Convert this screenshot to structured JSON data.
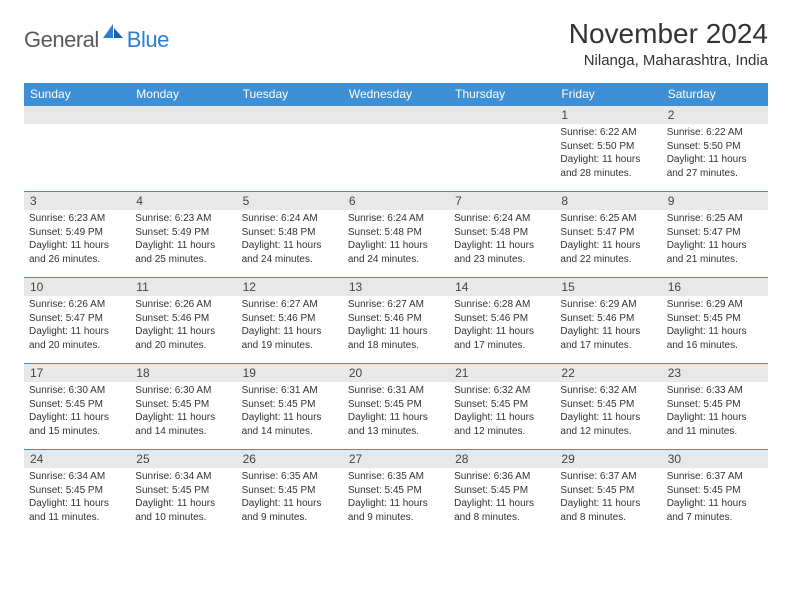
{
  "logo": {
    "word1": "General",
    "word2": "Blue"
  },
  "title": "November 2024",
  "location": "Nilanga, Maharashtra, India",
  "colors": {
    "header_bg": "#3f8fd4",
    "header_text": "#ffffff",
    "daynum_bg": "#e8e8e8",
    "border": "#3f8fd4",
    "body_text": "#333333",
    "logo_gray": "#5a5a5a",
    "logo_blue": "#2b7fd1",
    "page_bg": "#ffffff"
  },
  "typography": {
    "title_fontsize": 28,
    "location_fontsize": 15,
    "dayheader_fontsize": 12,
    "daynum_fontsize": 12,
    "daytext_fontsize": 10
  },
  "day_headers": [
    "Sunday",
    "Monday",
    "Tuesday",
    "Wednesday",
    "Thursday",
    "Friday",
    "Saturday"
  ],
  "weeks": [
    [
      {
        "blank": true
      },
      {
        "blank": true
      },
      {
        "blank": true
      },
      {
        "blank": true
      },
      {
        "blank": true
      },
      {
        "num": "1",
        "sunrise": "6:22 AM",
        "sunset": "5:50 PM",
        "daylight": "11 hours and 28 minutes."
      },
      {
        "num": "2",
        "sunrise": "6:22 AM",
        "sunset": "5:50 PM",
        "daylight": "11 hours and 27 minutes."
      }
    ],
    [
      {
        "num": "3",
        "sunrise": "6:23 AM",
        "sunset": "5:49 PM",
        "daylight": "11 hours and 26 minutes."
      },
      {
        "num": "4",
        "sunrise": "6:23 AM",
        "sunset": "5:49 PM",
        "daylight": "11 hours and 25 minutes."
      },
      {
        "num": "5",
        "sunrise": "6:24 AM",
        "sunset": "5:48 PM",
        "daylight": "11 hours and 24 minutes."
      },
      {
        "num": "6",
        "sunrise": "6:24 AM",
        "sunset": "5:48 PM",
        "daylight": "11 hours and 24 minutes."
      },
      {
        "num": "7",
        "sunrise": "6:24 AM",
        "sunset": "5:48 PM",
        "daylight": "11 hours and 23 minutes."
      },
      {
        "num": "8",
        "sunrise": "6:25 AM",
        "sunset": "5:47 PM",
        "daylight": "11 hours and 22 minutes."
      },
      {
        "num": "9",
        "sunrise": "6:25 AM",
        "sunset": "5:47 PM",
        "daylight": "11 hours and 21 minutes."
      }
    ],
    [
      {
        "num": "10",
        "sunrise": "6:26 AM",
        "sunset": "5:47 PM",
        "daylight": "11 hours and 20 minutes."
      },
      {
        "num": "11",
        "sunrise": "6:26 AM",
        "sunset": "5:46 PM",
        "daylight": "11 hours and 20 minutes."
      },
      {
        "num": "12",
        "sunrise": "6:27 AM",
        "sunset": "5:46 PM",
        "daylight": "11 hours and 19 minutes."
      },
      {
        "num": "13",
        "sunrise": "6:27 AM",
        "sunset": "5:46 PM",
        "daylight": "11 hours and 18 minutes."
      },
      {
        "num": "14",
        "sunrise": "6:28 AM",
        "sunset": "5:46 PM",
        "daylight": "11 hours and 17 minutes."
      },
      {
        "num": "15",
        "sunrise": "6:29 AM",
        "sunset": "5:46 PM",
        "daylight": "11 hours and 17 minutes."
      },
      {
        "num": "16",
        "sunrise": "6:29 AM",
        "sunset": "5:45 PM",
        "daylight": "11 hours and 16 minutes."
      }
    ],
    [
      {
        "num": "17",
        "sunrise": "6:30 AM",
        "sunset": "5:45 PM",
        "daylight": "11 hours and 15 minutes."
      },
      {
        "num": "18",
        "sunrise": "6:30 AM",
        "sunset": "5:45 PM",
        "daylight": "11 hours and 14 minutes."
      },
      {
        "num": "19",
        "sunrise": "6:31 AM",
        "sunset": "5:45 PM",
        "daylight": "11 hours and 14 minutes."
      },
      {
        "num": "20",
        "sunrise": "6:31 AM",
        "sunset": "5:45 PM",
        "daylight": "11 hours and 13 minutes."
      },
      {
        "num": "21",
        "sunrise": "6:32 AM",
        "sunset": "5:45 PM",
        "daylight": "11 hours and 12 minutes."
      },
      {
        "num": "22",
        "sunrise": "6:32 AM",
        "sunset": "5:45 PM",
        "daylight": "11 hours and 12 minutes."
      },
      {
        "num": "23",
        "sunrise": "6:33 AM",
        "sunset": "5:45 PM",
        "daylight": "11 hours and 11 minutes."
      }
    ],
    [
      {
        "num": "24",
        "sunrise": "6:34 AM",
        "sunset": "5:45 PM",
        "daylight": "11 hours and 11 minutes."
      },
      {
        "num": "25",
        "sunrise": "6:34 AM",
        "sunset": "5:45 PM",
        "daylight": "11 hours and 10 minutes."
      },
      {
        "num": "26",
        "sunrise": "6:35 AM",
        "sunset": "5:45 PM",
        "daylight": "11 hours and 9 minutes."
      },
      {
        "num": "27",
        "sunrise": "6:35 AM",
        "sunset": "5:45 PM",
        "daylight": "11 hours and 9 minutes."
      },
      {
        "num": "28",
        "sunrise": "6:36 AM",
        "sunset": "5:45 PM",
        "daylight": "11 hours and 8 minutes."
      },
      {
        "num": "29",
        "sunrise": "6:37 AM",
        "sunset": "5:45 PM",
        "daylight": "11 hours and 8 minutes."
      },
      {
        "num": "30",
        "sunrise": "6:37 AM",
        "sunset": "5:45 PM",
        "daylight": "11 hours and 7 minutes."
      }
    ]
  ],
  "labels": {
    "sunrise": "Sunrise:",
    "sunset": "Sunset:",
    "daylight": "Daylight:"
  }
}
